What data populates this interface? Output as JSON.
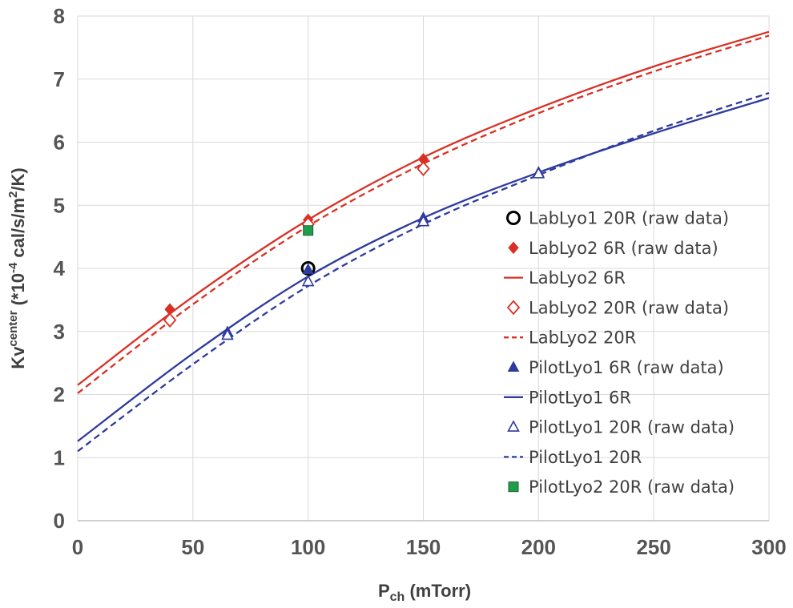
{
  "chart_data": {
    "type": "scatter",
    "xlabel": {
      "main": "P",
      "sub": "ch",
      "rest": " (mTorr)"
    },
    "ylabel": {
      "main": "Kv",
      "sup": "center",
      "mid": "  (*10",
      "sup2": "-4",
      "mid2": "  cal/s/m",
      "sup3": "2",
      "end": "/K)"
    },
    "xlim": [
      0,
      300
    ],
    "ylim": [
      0,
      8
    ],
    "xticks": [
      "0",
      "50",
      "100",
      "150",
      "200",
      "250",
      "300"
    ],
    "yticks": [
      "0",
      "1",
      "2",
      "3",
      "4",
      "5",
      "6",
      "7",
      "8"
    ],
    "grid": true,
    "legend_position": "right",
    "series": [
      {
        "name": "LabLyo1 20R (raw data)",
        "kind": "points",
        "marker": "circle-open",
        "color": "#000000",
        "points": [
          [
            100,
            4.0
          ]
        ]
      },
      {
        "name": "LabLyo2 6R (raw data)",
        "kind": "points",
        "marker": "diamond-filled",
        "color": "#d93025",
        "points": [
          [
            40,
            3.35
          ],
          [
            100,
            4.77
          ],
          [
            150,
            5.73
          ]
        ]
      },
      {
        "name": "LabLyo2 6R",
        "kind": "line",
        "dash": "solid",
        "color": "#d93025",
        "points": [
          [
            0,
            2.15
          ],
          [
            50,
            3.55
          ],
          [
            100,
            4.77
          ],
          [
            150,
            5.76
          ],
          [
            200,
            6.54
          ],
          [
            250,
            7.2
          ],
          [
            300,
            7.75
          ]
        ]
      },
      {
        "name": "LabLyo2 20R (raw data)",
        "kind": "points",
        "marker": "diamond-open",
        "color": "#d93025",
        "points": [
          [
            40,
            3.18
          ],
          [
            100,
            4.7
          ],
          [
            150,
            5.58
          ]
        ]
      },
      {
        "name": "LabLyo2 20R",
        "kind": "line",
        "dash": "dashed",
        "color": "#d93025",
        "points": [
          [
            0,
            2.02
          ],
          [
            50,
            3.43
          ],
          [
            100,
            4.67
          ],
          [
            150,
            5.66
          ],
          [
            200,
            6.46
          ],
          [
            250,
            7.12
          ],
          [
            300,
            7.69
          ]
        ]
      },
      {
        "name": "PilotLyo1 6R (raw data)",
        "kind": "points",
        "marker": "triangle-filled",
        "color": "#2e3a9e",
        "points": [
          [
            65,
            2.99
          ],
          [
            100,
            3.98
          ],
          [
            150,
            4.8
          ],
          [
            200,
            5.52
          ]
        ]
      },
      {
        "name": "PilotLyo1 6R",
        "kind": "line",
        "dash": "solid",
        "color": "#2e3a9e",
        "points": [
          [
            0,
            1.26
          ],
          [
            50,
            2.65
          ],
          [
            100,
            3.87
          ],
          [
            150,
            4.8
          ],
          [
            200,
            5.52
          ],
          [
            250,
            6.14
          ],
          [
            300,
            6.7
          ]
        ]
      },
      {
        "name": "PilotLyo1 20R (raw data)",
        "kind": "points",
        "marker": "triangle-open",
        "color": "#2e3a9e",
        "points": [
          [
            65,
            2.94
          ],
          [
            100,
            3.79
          ],
          [
            150,
            4.74
          ],
          [
            200,
            5.5
          ]
        ]
      },
      {
        "name": "PilotLyo1 20R",
        "kind": "line",
        "dash": "dashed",
        "color": "#2e3a9e",
        "points": [
          [
            0,
            1.1
          ],
          [
            50,
            2.48
          ],
          [
            100,
            3.72
          ],
          [
            150,
            4.7
          ],
          [
            200,
            5.48
          ],
          [
            250,
            6.18
          ],
          [
            300,
            6.78
          ]
        ]
      },
      {
        "name": "PilotLyo2 20R (raw data)",
        "kind": "points",
        "marker": "square-filled",
        "color": "#1e9e4a",
        "points": [
          [
            100,
            4.6
          ]
        ]
      }
    ]
  }
}
